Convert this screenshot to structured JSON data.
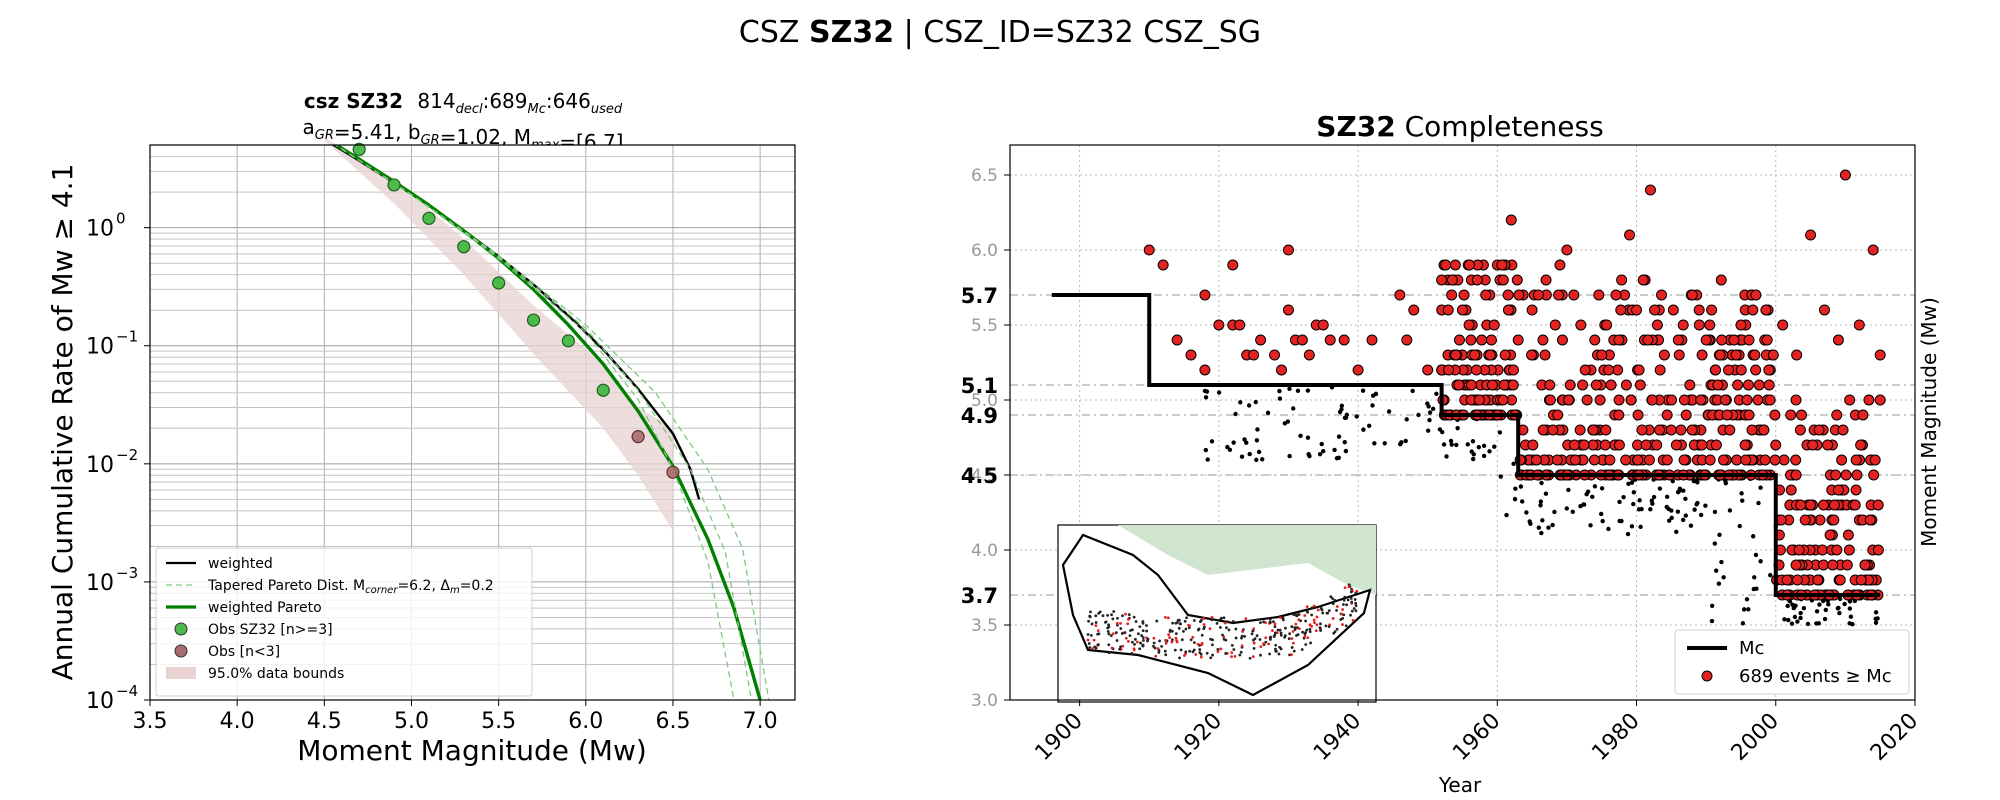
{
  "suptitle": {
    "prefix": "CSZ ",
    "bold": "SZ32",
    "rest": " | CSZ_ID=SZ32 CSZ_SG"
  },
  "chart_data": [
    {
      "type": "line",
      "title": {
        "bold": "csz SZ32",
        "counts": [
          "814",
          "689",
          "646"
        ],
        "count_subs": [
          "decl",
          "Mc",
          "used"
        ],
        "line2": "a_GR=5.41,  b_GR=1.02, M_max=[6.7]"
      },
      "xlabel": "Moment Magnitude (Mw)",
      "ylabel": "Annual Cumulative Rate of Mw  ≥  4.1",
      "xlim": [
        3.5,
        7.2
      ],
      "ylim_log10": [
        -4,
        0.7
      ],
      "y_scale": "log",
      "x_ticks": [
        3.5,
        4.0,
        4.5,
        5.0,
        5.5,
        6.0,
        6.5,
        7.0
      ],
      "x_tick_labels": [
        "3.5",
        "4.0",
        "4.5",
        "5.0",
        "5.5",
        "6.0",
        "6.5",
        "7.0"
      ],
      "y_ticks_log10": [
        0,
        -1,
        -2,
        -3,
        -4
      ],
      "y_tick_labels": [
        "10",
        "10",
        "10",
        "10",
        "10"
      ],
      "y_tick_exponents": [
        "0",
        "−1",
        "−2",
        "−3",
        "−4"
      ],
      "grid": true,
      "legend_position": "lower-left",
      "legend": [
        {
          "label": "weighted",
          "color": "#000000",
          "kind": "line"
        },
        {
          "label": "Tapered Pareto Dist. M",
          "sub1": "corner",
          "mid": "=6.2, Δ",
          "sub2": "m",
          "end": "=0.2",
          "color": "#7fc97f",
          "kind": "dashed"
        },
        {
          "label": "weighted Pareto",
          "color": "#008000",
          "kind": "line"
        },
        {
          "label": "Obs SZ32 [n>=3]",
          "color": "#4cbb4c",
          "kind": "marker"
        },
        {
          "label": "Obs [n<3]",
          "color": "#a86c6c",
          "kind": "marker"
        },
        {
          "label": "95.0% data bounds",
          "color": "#e8d2d2",
          "kind": "patch"
        }
      ],
      "series": [
        {
          "name": "weighted",
          "color": "#000000",
          "x": [
            4.5,
            4.7,
            4.9,
            5.1,
            5.3,
            5.5,
            5.7,
            5.9,
            6.1,
            6.3,
            6.5,
            6.6,
            6.65
          ],
          "y": [
            5.6,
            3.7,
            2.4,
            1.55,
            0.95,
            0.57,
            0.33,
            0.18,
            0.093,
            0.043,
            0.018,
            0.009,
            0.005
          ]
        },
        {
          "name": "weighted Pareto",
          "color": "#008000",
          "x": [
            4.5,
            4.7,
            4.9,
            5.1,
            5.3,
            5.5,
            5.7,
            5.9,
            6.1,
            6.3,
            6.5,
            6.7,
            6.85,
            7.0
          ],
          "y": [
            5.8,
            3.8,
            2.45,
            1.55,
            0.94,
            0.55,
            0.3,
            0.15,
            0.07,
            0.028,
            0.0095,
            0.0023,
            0.0006,
            0.0001
          ]
        },
        {
          "name": "tapered-1",
          "color": "#7fc97f",
          "x": [
            4.5,
            5.0,
            5.5,
            6.0,
            6.3,
            6.5,
            6.7,
            6.85
          ],
          "y": [
            5.8,
            1.9,
            0.55,
            0.13,
            0.035,
            0.009,
            0.0015,
            0.0001
          ]
        },
        {
          "name": "tapered-2",
          "color": "#7fc97f",
          "x": [
            4.5,
            5.0,
            5.5,
            6.0,
            6.3,
            6.6,
            6.8,
            6.95
          ],
          "y": [
            5.8,
            1.9,
            0.57,
            0.14,
            0.042,
            0.009,
            0.0018,
            0.0001
          ]
        },
        {
          "name": "tapered-3",
          "color": "#7fc97f",
          "x": [
            4.5,
            5.0,
            5.5,
            6.0,
            6.4,
            6.7,
            6.9,
            7.05
          ],
          "y": [
            5.8,
            1.9,
            0.58,
            0.15,
            0.04,
            0.009,
            0.0019,
            0.0001
          ]
        }
      ],
      "obs_green": {
        "x": [
          4.7,
          4.9,
          5.1,
          5.3,
          5.5,
          5.7,
          5.9,
          6.1
        ],
        "y": [
          4.6,
          2.3,
          1.2,
          0.69,
          0.34,
          0.165,
          0.11,
          0.042
        ]
      },
      "obs_brown": {
        "x": [
          6.3,
          6.5
        ],
        "y": [
          0.017,
          0.0085
        ]
      },
      "bounds": {
        "x": [
          4.5,
          4.9,
          5.3,
          5.7,
          6.1,
          6.3,
          6.5
        ],
        "upper": [
          5.8,
          2.6,
          0.8,
          0.22,
          0.07,
          0.03,
          0.02
        ],
        "lower": [
          5.5,
          1.6,
          0.4,
          0.085,
          0.02,
          0.008,
          0.0027
        ]
      }
    },
    {
      "type": "scatter",
      "title": {
        "bold": "SZ32",
        "rest": " Completeness"
      },
      "xlabel": "Year",
      "ylabel": "Moment Magnitude (Mw)",
      "xlim": [
        1890,
        2020
      ],
      "ylim": [
        3.0,
        6.7
      ],
      "x_ticks": [
        1900,
        1920,
        1940,
        1960,
        1980,
        2000,
        2020
      ],
      "x_tick_labels": [
        "1900",
        "1920",
        "1940",
        "1960",
        "1980",
        "2000",
        "2020"
      ],
      "y_ticks": [
        3.0,
        3.5,
        4.0,
        4.5,
        5.0,
        5.5,
        6.0,
        6.5
      ],
      "y_tick_labels": [
        "3.0",
        "3.5",
        "4.0",
        "4.5",
        "5.0",
        "5.5",
        "6.0",
        "6.5"
      ],
      "mc_levels": [
        5.7,
        5.1,
        4.9,
        4.5,
        3.7
      ],
      "mc_level_labels": [
        "5.7",
        "5.1",
        "4.9",
        "4.5",
        "3.7"
      ],
      "mc_step": {
        "x": [
          1896,
          1910,
          1910,
          1952,
          1952,
          1963,
          1963,
          2000,
          2000,
          2015
        ],
        "y": [
          5.7,
          5.7,
          5.1,
          5.1,
          4.9,
          4.9,
          4.5,
          4.5,
          3.7,
          3.7
        ]
      },
      "grid": true,
      "legend_position": "lower-right",
      "legend": [
        {
          "label": "Mc",
          "kind": "line",
          "color": "#000000"
        },
        {
          "label": "689 events  ≥  Mc",
          "kind": "marker",
          "color": "#e52222"
        }
      ],
      "events_above_mc": [
        [
          1910,
          6.0
        ],
        [
          1912,
          5.9
        ],
        [
          1914,
          5.4
        ],
        [
          1916,
          5.3
        ],
        [
          1918,
          5.7
        ],
        [
          1918,
          5.2
        ],
        [
          1920,
          5.5
        ],
        [
          1922,
          5.9
        ],
        [
          1922,
          5.5
        ],
        [
          1923,
          5.5
        ],
        [
          1924,
          5.3
        ],
        [
          1925,
          5.3
        ],
        [
          1926,
          5.4
        ],
        [
          1928,
          5.3
        ],
        [
          1929,
          5.2
        ],
        [
          1930,
          6.0
        ],
        [
          1930,
          5.6
        ],
        [
          1931,
          5.4
        ],
        [
          1932,
          5.4
        ],
        [
          1933,
          5.3
        ],
        [
          1934,
          5.5
        ],
        [
          1935,
          5.5
        ],
        [
          1936,
          5.4
        ],
        [
          1938,
          5.4
        ],
        [
          1940,
          5.2
        ],
        [
          1942,
          5.4
        ],
        [
          1946,
          5.7
        ],
        [
          1947,
          5.4
        ],
        [
          1948,
          5.6
        ],
        [
          1950,
          5.2
        ],
        [
          1952,
          5.8
        ],
        [
          1953,
          5.2
        ],
        [
          1956,
          5.9
        ],
        [
          1957,
          5.2
        ],
        [
          1959,
          5.3
        ],
        [
          1962,
          6.2
        ],
        [
          1963,
          5.4
        ],
        [
          1965,
          5.6
        ],
        [
          1967,
          5.8
        ],
        [
          1969,
          5.9
        ],
        [
          1970,
          6.0
        ],
        [
          1971,
          5.7
        ],
        [
          1972,
          5.5
        ],
        [
          1974,
          5.4
        ],
        [
          1975,
          5.3
        ],
        [
          1976,
          5.2
        ],
        [
          1979,
          6.1
        ],
        [
          1980,
          5.6
        ],
        [
          1982,
          6.4
        ],
        [
          1983,
          5.5
        ],
        [
          1984,
          5.3
        ],
        [
          1986,
          5.4
        ],
        [
          1988,
          5.7
        ],
        [
          1989,
          5.6
        ],
        [
          1990,
          5.4
        ],
        [
          1992,
          5.3
        ],
        [
          1994,
          5.4
        ],
        [
          1995,
          5.5
        ],
        [
          1997,
          5.3
        ],
        [
          1999,
          5.2
        ],
        [
          2001,
          5.5
        ],
        [
          2003,
          5.3
        ],
        [
          2005,
          6.1
        ],
        [
          2007,
          5.6
        ],
        [
          2009,
          5.4
        ],
        [
          2010,
          6.5
        ],
        [
          2012,
          5.5
        ],
        [
          2014,
          6.0
        ],
        [
          2015,
          5.3
        ]
      ],
      "inset_map": {
        "land_color": "#cfe5cf",
        "outline_color": "#000000"
      }
    }
  ]
}
